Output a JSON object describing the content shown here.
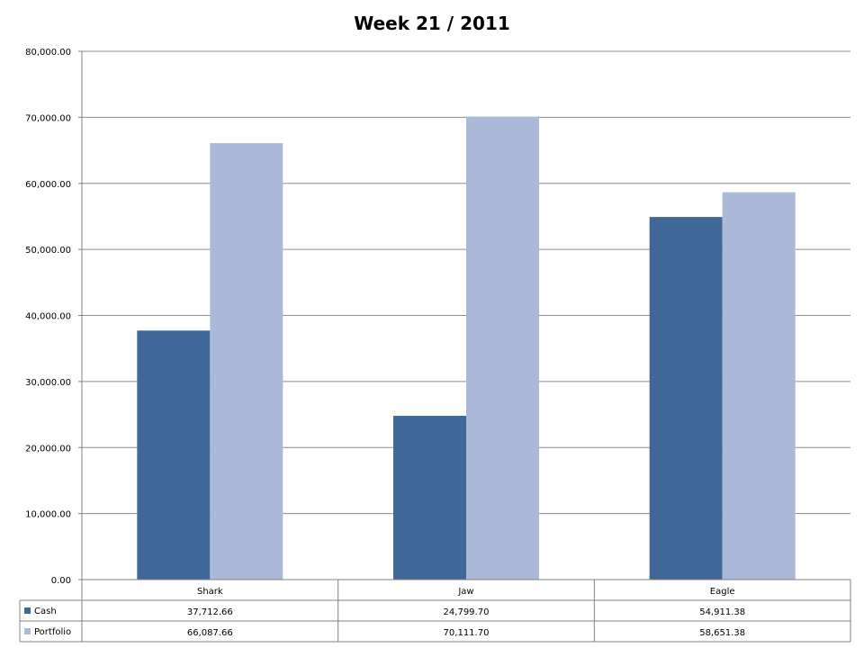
{
  "chart_data": {
    "type": "bar",
    "title": "Week 21 / 2011",
    "categories": [
      "Shark",
      "Jaw",
      "Eagle"
    ],
    "series": [
      {
        "name": "Cash",
        "color": "#3f6899",
        "values": [
          37712.66,
          24799.7,
          54911.38
        ],
        "labels": [
          "37,712.66",
          "24,799.70",
          "54,911.38"
        ]
      },
      {
        "name": "Portfolio",
        "color": "#aab9d7",
        "values": [
          66087.66,
          70111.7,
          58651.38
        ],
        "labels": [
          "66,087.66",
          "70,111.70",
          "58,651.38"
        ]
      }
    ],
    "ylim": [
      0,
      80000
    ],
    "yticks": [
      0,
      10000,
      20000,
      30000,
      40000,
      50000,
      60000,
      70000,
      80000
    ],
    "ytick_labels": [
      "0.00",
      "10,000.00",
      "20,000.00",
      "30,000.00",
      "40,000.00",
      "50,000.00",
      "60,000.00",
      "70,000.00",
      "80,000.00"
    ],
    "grid": true,
    "legend": "data-table-below"
  }
}
